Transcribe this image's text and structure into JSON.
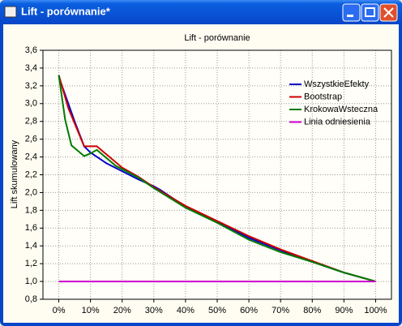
{
  "window": {
    "title": "Lift - porównanie*"
  },
  "chart_data": {
    "type": "line",
    "title": "Lift - porównanie",
    "y_label": "Lift skumulowany",
    "xlim": [
      -5,
      105
    ],
    "xticks": [
      {
        "value": 0,
        "label": "0%"
      },
      {
        "value": 10,
        "label": "10%"
      },
      {
        "value": 20,
        "label": "20%"
      },
      {
        "value": 30,
        "label": "30%"
      },
      {
        "value": 40,
        "label": "40%"
      },
      {
        "value": 50,
        "label": "50%"
      },
      {
        "value": 60,
        "label": "60%"
      },
      {
        "value": 70,
        "label": "70%"
      },
      {
        "value": 80,
        "label": "80%"
      },
      {
        "value": 90,
        "label": "90%"
      },
      {
        "value": 100,
        "label": "100%"
      }
    ],
    "ylim": [
      0.8,
      3.6
    ],
    "yticks": [
      {
        "value": 0.8,
        "label": "0,8"
      },
      {
        "value": 1.0,
        "label": "1,0"
      },
      {
        "value": 1.2,
        "label": "1,2"
      },
      {
        "value": 1.4,
        "label": "1,4"
      },
      {
        "value": 1.6,
        "label": "1,6"
      },
      {
        "value": 1.8,
        "label": "1,8"
      },
      {
        "value": 2.0,
        "label": "2,0"
      },
      {
        "value": 2.2,
        "label": "2,2"
      },
      {
        "value": 2.4,
        "label": "2,4"
      },
      {
        "value": 2.6,
        "label": "2,6"
      },
      {
        "value": 2.8,
        "label": "2,8"
      },
      {
        "value": 3.0,
        "label": "3,0"
      },
      {
        "value": 3.2,
        "label": "3,2"
      },
      {
        "value": 3.4,
        "label": "3,4"
      },
      {
        "value": 3.6,
        "label": "3,6"
      }
    ],
    "grid": true,
    "legend": "upper right",
    "series": [
      {
        "name": "WszystkieEfekty",
        "color": "#0000cc",
        "x": [
          0,
          5,
          8,
          10,
          15,
          20,
          25,
          30,
          32,
          40,
          50,
          60,
          70,
          80,
          90,
          100
        ],
        "values": [
          3.3,
          2.8,
          2.52,
          2.45,
          2.33,
          2.24,
          2.15,
          2.07,
          2.03,
          1.84,
          1.67,
          1.49,
          1.35,
          1.22,
          1.1,
          1.0
        ]
      },
      {
        "name": "Bootstrap",
        "color": "#cc0000",
        "x": [
          0,
          3,
          8,
          12,
          15,
          20,
          25,
          30,
          40,
          50,
          60,
          70,
          80,
          90,
          100
        ],
        "values": [
          3.32,
          2.95,
          2.52,
          2.52,
          2.43,
          2.28,
          2.18,
          2.06,
          1.85,
          1.68,
          1.51,
          1.36,
          1.23,
          1.1,
          1.0
        ]
      },
      {
        "name": "KrokowaWsteczna",
        "color": "#007a00",
        "x": [
          0,
          2,
          4,
          8,
          10,
          12,
          18,
          25,
          30,
          40,
          50,
          60,
          70,
          80,
          90,
          100
        ],
        "values": [
          3.32,
          2.82,
          2.53,
          2.41,
          2.44,
          2.48,
          2.3,
          2.17,
          2.05,
          1.83,
          1.66,
          1.47,
          1.33,
          1.22,
          1.1,
          1.0
        ]
      },
      {
        "name": "Linia odniesienia",
        "color": "#cc00cc",
        "x": [
          0,
          100
        ],
        "values": [
          1.0,
          1.0
        ]
      }
    ]
  }
}
